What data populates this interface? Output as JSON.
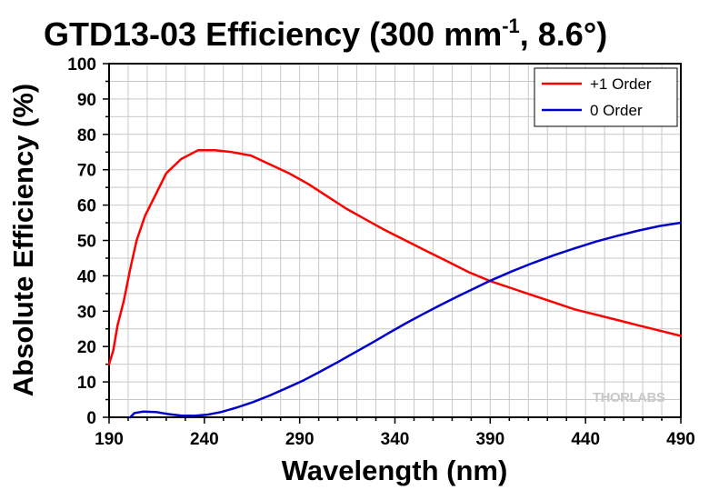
{
  "chart_data": {
    "type": "line",
    "title": "GTD13-03 Efficiency (300 mm",
    "title_sup": "-1",
    "title_tail": ", 8.6°)",
    "xlabel": "Wavelength (nm)",
    "ylabel": "Absolute Efficiency (%)",
    "xlim": [
      190,
      490
    ],
    "ylim": [
      0,
      100
    ],
    "x_ticks": [
      "190",
      "240",
      "290",
      "340",
      "390",
      "440",
      "490"
    ],
    "y_ticks": [
      "0",
      "10",
      "20",
      "30",
      "40",
      "50",
      "60",
      "70",
      "80",
      "90",
      "100"
    ],
    "grid": true,
    "legend_position": "top-right",
    "watermark": "THORLABS",
    "series": [
      {
        "name": "+1 Order",
        "color": "#ff0000",
        "points": [
          [
            190,
            15
          ],
          [
            192,
            19
          ],
          [
            194,
            26
          ],
          [
            197,
            33
          ],
          [
            200,
            42
          ],
          [
            203,
            50
          ],
          [
            207,
            57
          ],
          [
            212,
            63
          ],
          [
            217,
            69
          ],
          [
            224,
            73
          ],
          [
            232,
            75.5
          ],
          [
            240,
            75.5
          ],
          [
            248,
            75
          ],
          [
            257,
            74
          ],
          [
            266,
            71.5
          ],
          [
            275,
            69
          ],
          [
            284,
            66
          ],
          [
            293,
            62.5
          ],
          [
            302,
            59
          ],
          [
            311,
            56
          ],
          [
            320,
            53
          ],
          [
            330,
            50
          ],
          [
            340,
            47
          ],
          [
            350,
            44
          ],
          [
            360,
            41
          ],
          [
            370,
            38.5
          ],
          [
            380,
            36.5
          ],
          [
            390,
            34.5
          ],
          [
            400,
            32.5
          ],
          [
            410,
            30.5
          ],
          [
            420,
            29
          ],
          [
            430,
            27.5
          ],
          [
            440,
            26
          ],
          [
            450,
            24.5
          ],
          [
            460,
            23
          ]
        ]
      },
      {
        "name": "0 Order",
        "color": "#0000cc",
        "points": [
          [
            200,
            0
          ],
          [
            202,
            1.2
          ],
          [
            206,
            1.6
          ],
          [
            212,
            1.5
          ],
          [
            218,
            0.9
          ],
          [
            224,
            0.5
          ],
          [
            230,
            0.4
          ],
          [
            236,
            0.7
          ],
          [
            243,
            1.5
          ],
          [
            250,
            2.7
          ],
          [
            258,
            4.3
          ],
          [
            266,
            6.2
          ],
          [
            274,
            8.3
          ],
          [
            282,
            10.5
          ],
          [
            290,
            13
          ],
          [
            298,
            15.6
          ],
          [
            306,
            18.3
          ],
          [
            314,
            21
          ],
          [
            322,
            23.8
          ],
          [
            330,
            26.5
          ],
          [
            338,
            29.1
          ],
          [
            346,
            31.6
          ],
          [
            354,
            34
          ],
          [
            362,
            36.3
          ],
          [
            370,
            38.6
          ],
          [
            380,
            41.2
          ],
          [
            390,
            43.6
          ],
          [
            400,
            45.8
          ],
          [
            410,
            47.8
          ],
          [
            420,
            49.7
          ],
          [
            430,
            51.3
          ],
          [
            440,
            52.8
          ],
          [
            450,
            54.1
          ],
          [
            460,
            55
          ]
        ]
      }
    ]
  }
}
